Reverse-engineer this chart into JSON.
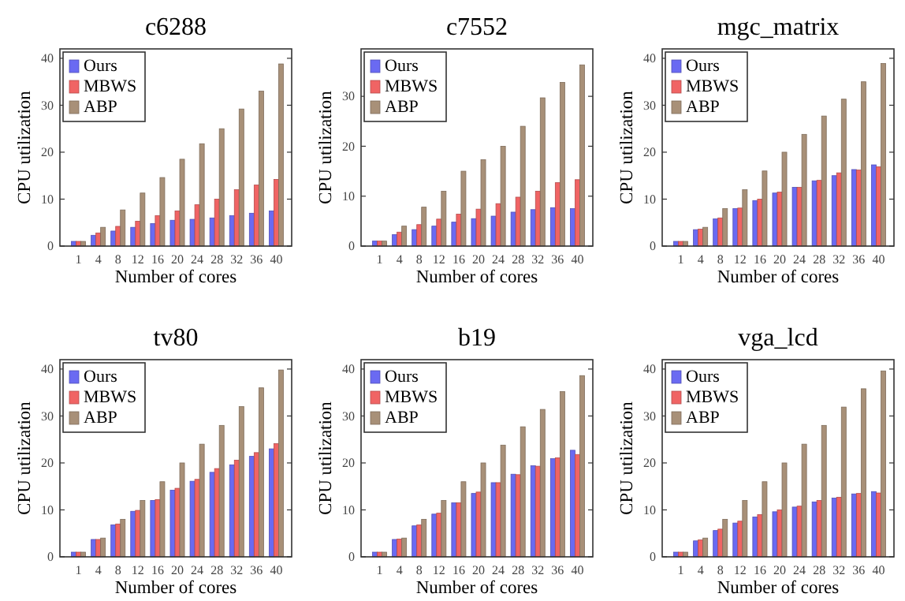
{
  "chart_data": [
    {
      "type": "bar",
      "title": "c6288",
      "xlabel": "Number of cores",
      "ylabel": "CPU utilization",
      "categories": [
        "1",
        "4",
        "8",
        "12",
        "16",
        "20",
        "24",
        "28",
        "32",
        "36",
        "40"
      ],
      "ylim": [
        0,
        42
      ],
      "yticks": [
        0,
        10,
        20,
        30,
        40
      ],
      "legend": "top left",
      "series": [
        {
          "name": "Ours",
          "color": "#6a6af2",
          "values": [
            1,
            2.3,
            3.2,
            4,
            4.8,
            5.5,
            5.7,
            6,
            6.5,
            7,
            7.5
          ]
        },
        {
          "name": "MBWS",
          "color": "#f06464",
          "values": [
            1,
            2.8,
            4.2,
            5.3,
            6.5,
            7.5,
            8.8,
            10,
            12,
            13,
            14.2
          ]
        },
        {
          "name": "ABP",
          "color": "#a89078",
          "values": [
            1,
            4,
            7.7,
            11.3,
            14.6,
            18.5,
            21.8,
            25,
            29.2,
            33,
            38.8
          ]
        }
      ]
    },
    {
      "type": "bar",
      "title": "c7552",
      "xlabel": "Number of cores",
      "ylabel": "CPU utilization",
      "categories": [
        "1",
        "4",
        "8",
        "12",
        "16",
        "20",
        "24",
        "28",
        "32",
        "36",
        "40"
      ],
      "ylim": [
        0,
        39.5
      ],
      "yticks": [
        0,
        10,
        20,
        30
      ],
      "legend": "top left",
      "series": [
        {
          "name": "Ours",
          "color": "#6a6af2",
          "values": [
            1,
            2.3,
            3.3,
            4,
            4.8,
            5.5,
            6,
            6.8,
            7.3,
            7.7,
            7.5
          ]
        },
        {
          "name": "MBWS",
          "color": "#f06464",
          "values": [
            1,
            2.8,
            4.3,
            5.4,
            6.4,
            7.4,
            8.5,
            9.8,
            11,
            12.7,
            13.3
          ]
        },
        {
          "name": "ABP",
          "color": "#a89078",
          "values": [
            1,
            4,
            7.8,
            11,
            15,
            17.3,
            20,
            24,
            29.7,
            32.8,
            36.3
          ]
        }
      ]
    },
    {
      "type": "bar",
      "title": "mgc_matrix",
      "xlabel": "Number of cores",
      "ylabel": "CPU utilization",
      "categories": [
        "1",
        "4",
        "8",
        "12",
        "16",
        "20",
        "24",
        "28",
        "32",
        "36",
        "40"
      ],
      "ylim": [
        0,
        42
      ],
      "yticks": [
        0,
        10,
        20,
        30,
        40
      ],
      "legend": "top left",
      "series": [
        {
          "name": "Ours",
          "color": "#6a6af2",
          "values": [
            1,
            3.5,
            5.8,
            8,
            9.7,
            11.3,
            12.5,
            13.9,
            15,
            16.3,
            17.3
          ]
        },
        {
          "name": "MBWS",
          "color": "#f06464",
          "values": [
            1,
            3.6,
            6,
            8.1,
            10,
            11.5,
            12.5,
            14,
            15.6,
            16.2,
            16.9
          ]
        },
        {
          "name": "ABP",
          "color": "#a89078",
          "values": [
            1,
            4,
            8,
            12,
            16,
            20,
            23.8,
            27.7,
            31.3,
            35,
            38.9
          ]
        }
      ]
    },
    {
      "type": "bar",
      "title": "tv80",
      "xlabel": "Number of cores",
      "ylabel": "CPU utilization",
      "categories": [
        "1",
        "4",
        "8",
        "12",
        "16",
        "20",
        "24",
        "28",
        "32",
        "36",
        "40"
      ],
      "ylim": [
        0,
        42
      ],
      "yticks": [
        0,
        10,
        20,
        30,
        40
      ],
      "legend": "top left",
      "series": [
        {
          "name": "Ours",
          "color": "#6a6af2",
          "values": [
            1,
            3.7,
            6.8,
            9.7,
            12,
            14.2,
            16.1,
            18,
            19.6,
            21.4,
            23
          ]
        },
        {
          "name": "MBWS",
          "color": "#f06464",
          "values": [
            1,
            3.7,
            7,
            9.9,
            12.2,
            14.6,
            16.5,
            18.8,
            20.6,
            22.2,
            24.1
          ]
        },
        {
          "name": "ABP",
          "color": "#a89078",
          "values": [
            1,
            4,
            8,
            12,
            16,
            20,
            24,
            28,
            32,
            36,
            39.8
          ]
        }
      ]
    },
    {
      "type": "bar",
      "title": "b19",
      "xlabel": "Number of cores",
      "ylabel": "CPU utilization",
      "categories": [
        "1",
        "4",
        "8",
        "12",
        "16",
        "20",
        "24",
        "28",
        "32",
        "36",
        "40"
      ],
      "ylim": [
        0,
        42
      ],
      "yticks": [
        0,
        10,
        20,
        30,
        40
      ],
      "legend": "top left",
      "series": [
        {
          "name": "Ours",
          "color": "#6a6af2",
          "values": [
            1,
            3.7,
            6.6,
            9.1,
            11.5,
            13.5,
            15.8,
            17.6,
            19.4,
            20.9,
            22.7
          ]
        },
        {
          "name": "MBWS",
          "color": "#f06464",
          "values": [
            1,
            3.8,
            6.8,
            9.3,
            11.5,
            13.8,
            15.8,
            17.5,
            19.3,
            21.1,
            21.8
          ]
        },
        {
          "name": "ABP",
          "color": "#a89078",
          "values": [
            1,
            4,
            8,
            12,
            16,
            20,
            23.8,
            27.7,
            31.4,
            35.2,
            38.6
          ]
        }
      ]
    },
    {
      "type": "bar",
      "title": "vga_lcd",
      "xlabel": "Number of cores",
      "ylabel": "CPU utilization",
      "categories": [
        "1",
        "4",
        "8",
        "12",
        "16",
        "20",
        "24",
        "28",
        "32",
        "36",
        "40"
      ],
      "ylim": [
        0,
        42
      ],
      "yticks": [
        0,
        10,
        20,
        30,
        40
      ],
      "legend": "top left",
      "series": [
        {
          "name": "Ours",
          "color": "#6a6af2",
          "values": [
            1,
            3.4,
            5.6,
            7.2,
            8.5,
            9.6,
            10.6,
            11.7,
            12.5,
            13.4,
            13.9
          ]
        },
        {
          "name": "MBWS",
          "color": "#f06464",
          "values": [
            1,
            3.6,
            5.9,
            7.6,
            9,
            10,
            10.8,
            12,
            12.7,
            13.5,
            13.6
          ]
        },
        {
          "name": "ABP",
          "color": "#a89078",
          "values": [
            1,
            4,
            8,
            12,
            16,
            20,
            24,
            28,
            31.9,
            35.8,
            39.6
          ]
        }
      ]
    }
  ]
}
